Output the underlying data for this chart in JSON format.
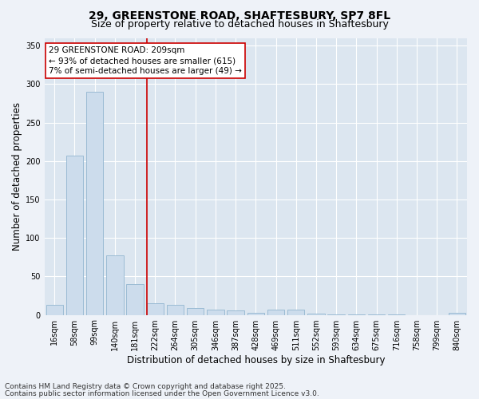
{
  "title_line1": "29, GREENSTONE ROAD, SHAFTESBURY, SP7 8FL",
  "title_line2": "Size of property relative to detached houses in Shaftesbury",
  "xlabel": "Distribution of detached houses by size in Shaftesbury",
  "ylabel": "Number of detached properties",
  "categories": [
    "16sqm",
    "58sqm",
    "99sqm",
    "140sqm",
    "181sqm",
    "222sqm",
    "264sqm",
    "305sqm",
    "346sqm",
    "387sqm",
    "428sqm",
    "469sqm",
    "511sqm",
    "552sqm",
    "593sqm",
    "634sqm",
    "675sqm",
    "716sqm",
    "758sqm",
    "799sqm",
    "840sqm"
  ],
  "values": [
    13,
    207,
    290,
    77,
    40,
    15,
    13,
    9,
    7,
    6,
    3,
    7,
    7,
    2,
    1,
    1,
    1,
    1,
    0,
    0,
    3
  ],
  "bar_color": "#ccdcec",
  "bar_edge_color": "#9bbbd4",
  "vline_color": "#cc0000",
  "vline_x_index": 5,
  "annotation_text": "29 GREENSTONE ROAD: 209sqm\n← 93% of detached houses are smaller (615)\n7% of semi-detached houses are larger (49) →",
  "annotation_box_facecolor": "#ffffff",
  "annotation_box_edgecolor": "#cc0000",
  "ylim": [
    0,
    360
  ],
  "yticks": [
    0,
    50,
    100,
    150,
    200,
    250,
    300,
    350
  ],
  "background_color": "#eef2f8",
  "plot_bg_color": "#dce6f0",
  "footer_line1": "Contains HM Land Registry data © Crown copyright and database right 2025.",
  "footer_line2": "Contains public sector information licensed under the Open Government Licence v3.0.",
  "title_fontsize": 10,
  "subtitle_fontsize": 9,
  "axis_label_fontsize": 8.5,
  "tick_fontsize": 7,
  "annotation_fontsize": 7.5,
  "footer_fontsize": 6.5
}
